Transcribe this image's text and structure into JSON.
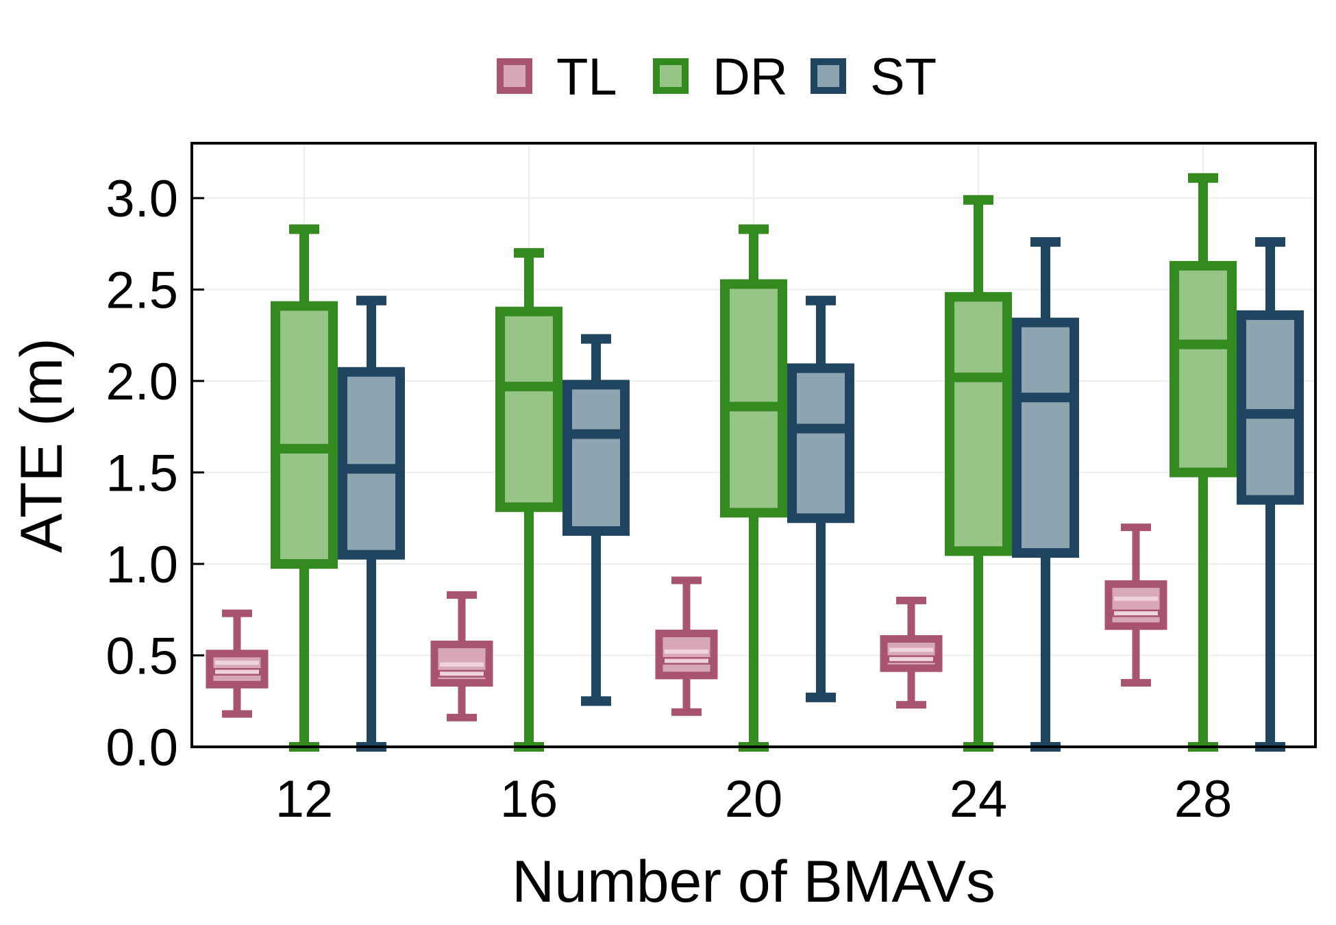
{
  "chart_data": {
    "type": "box",
    "xlabel": "Number of BMAVs",
    "ylabel": "ATE (m)",
    "ylim": [
      0.0,
      3.3
    ],
    "yticks": [
      0.0,
      0.5,
      1.0,
      1.5,
      2.0,
      2.5,
      3.0
    ],
    "ytick_labels": [
      "0.0",
      "0.5",
      "1.0",
      "1.5",
      "2.0",
      "2.5",
      "3.0"
    ],
    "grid": true,
    "legend_position": "top-center",
    "categories": [
      "12",
      "16",
      "20",
      "24",
      "28"
    ],
    "series": [
      {
        "name": "TL",
        "edge_color": "#a8546f",
        "fill_color": "#d9a8b8",
        "boxes": [
          {
            "whisker_low": 0.18,
            "q1": 0.34,
            "median": 0.41,
            "mean": 0.46,
            "q3": 0.51,
            "whisker_high": 0.73
          },
          {
            "whisker_low": 0.16,
            "q1": 0.35,
            "median": 0.4,
            "mean": 0.45,
            "q3": 0.56,
            "whisker_high": 0.83
          },
          {
            "whisker_low": 0.19,
            "q1": 0.39,
            "median": 0.47,
            "mean": 0.52,
            "q3": 0.62,
            "whisker_high": 0.91
          },
          {
            "whisker_low": 0.23,
            "q1": 0.43,
            "median": 0.48,
            "mean": 0.53,
            "q3": 0.59,
            "whisker_high": 0.8
          },
          {
            "whisker_low": 0.35,
            "q1": 0.66,
            "median": 0.73,
            "mean": 0.81,
            "q3": 0.89,
            "whisker_high": 1.2
          }
        ]
      },
      {
        "name": "DR",
        "edge_color": "#338a1f",
        "fill_color": "#97c487",
        "boxes": [
          {
            "whisker_low": 0.0,
            "q1": 1.0,
            "median": 1.63,
            "q3": 2.41,
            "whisker_high": 2.83
          },
          {
            "whisker_low": 0.0,
            "q1": 1.31,
            "median": 1.97,
            "q3": 2.38,
            "whisker_high": 2.7
          },
          {
            "whisker_low": 0.0,
            "q1": 1.28,
            "median": 1.86,
            "q3": 2.53,
            "whisker_high": 2.83
          },
          {
            "whisker_low": 0.0,
            "q1": 1.07,
            "median": 2.02,
            "q3": 2.46,
            "whisker_high": 2.99
          },
          {
            "whisker_low": 0.0,
            "q1": 1.5,
            "median": 2.2,
            "q3": 2.63,
            "whisker_high": 3.11
          }
        ]
      },
      {
        "name": "ST",
        "edge_color": "#1f4560",
        "fill_color": "#8ea4b1",
        "boxes": [
          {
            "whisker_low": 0.0,
            "q1": 1.05,
            "median": 1.52,
            "q3": 2.05,
            "whisker_high": 2.44
          },
          {
            "whisker_low": 0.25,
            "q1": 1.18,
            "median": 1.71,
            "q3": 1.98,
            "whisker_high": 2.23
          },
          {
            "whisker_low": 0.27,
            "q1": 1.25,
            "median": 1.74,
            "q3": 2.07,
            "whisker_high": 2.44
          },
          {
            "whisker_low": 0.0,
            "q1": 1.06,
            "median": 1.91,
            "q3": 2.32,
            "whisker_high": 2.76
          },
          {
            "whisker_low": 0.0,
            "q1": 1.35,
            "median": 1.82,
            "q3": 2.36,
            "whisker_high": 2.76
          }
        ]
      }
    ]
  }
}
